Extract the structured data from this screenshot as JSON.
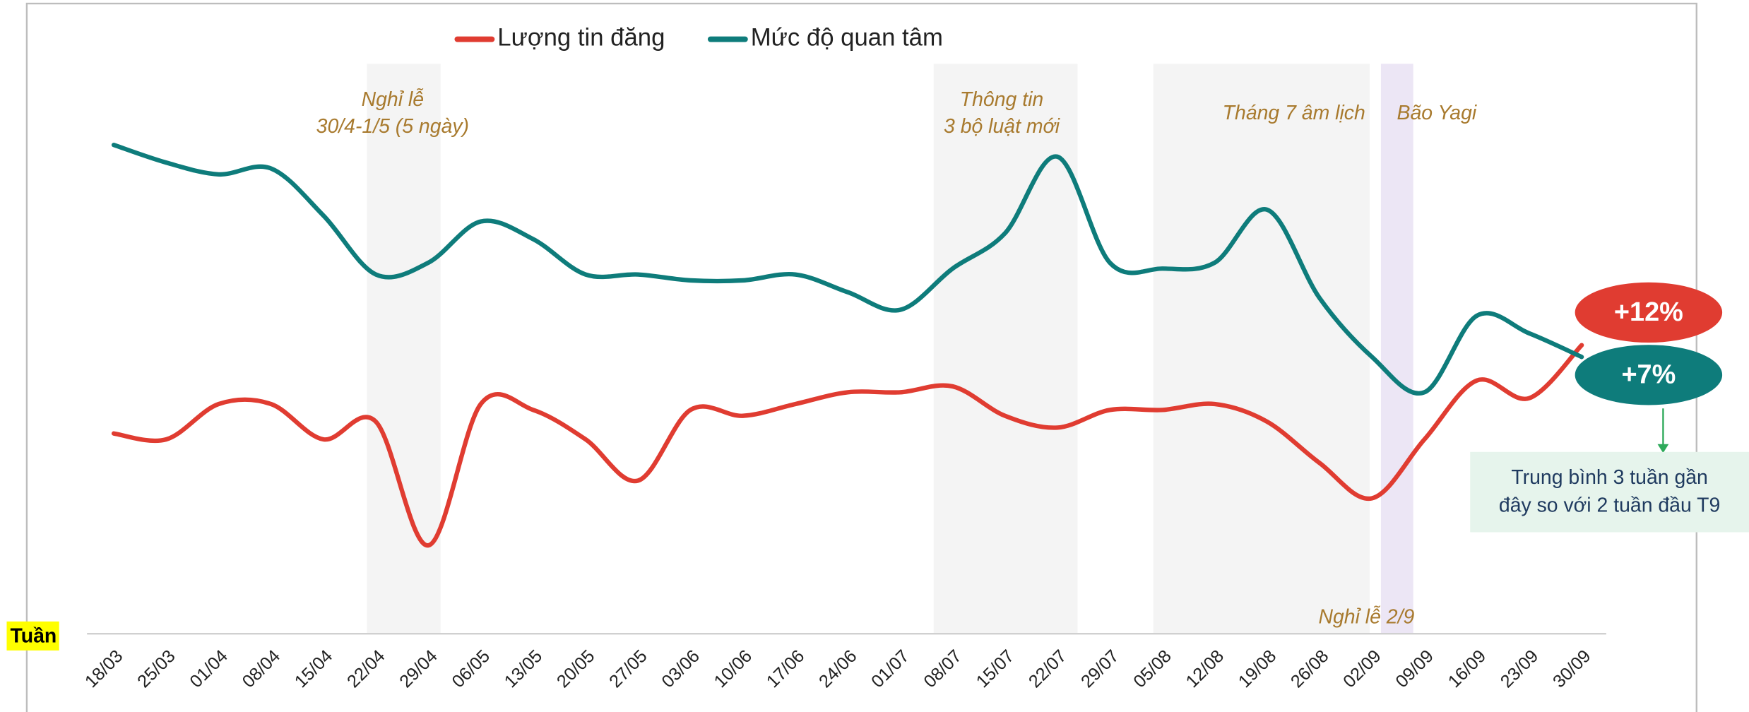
{
  "chart_data": {
    "type": "line",
    "x_label": "Tuần",
    "categories": [
      "18/03",
      "25/03",
      "01/04",
      "08/04",
      "15/04",
      "22/04",
      "29/04",
      "06/05",
      "13/05",
      "20/05",
      "27/05",
      "03/06",
      "10/06",
      "17/06",
      "24/06",
      "01/07",
      "08/07",
      "15/07",
      "22/07",
      "29/07",
      "05/08",
      "12/08",
      "19/08",
      "26/08",
      "02/09",
      "09/09",
      "16/09",
      "23/09",
      "30/09"
    ],
    "series": [
      {
        "name": "Lượng tin đăng",
        "color": "#e03c31",
        "values": [
          34,
          33,
          39,
          39,
          33,
          36,
          15,
          39,
          38,
          33,
          26,
          38,
          37,
          39,
          41,
          41,
          42,
          37,
          35,
          38,
          38,
          39,
          36,
          29,
          23,
          33,
          43,
          40,
          49
        ]
      },
      {
        "name": "Mức độ quan tâm",
        "color": "#0e7c7b",
        "values": [
          83,
          80,
          78,
          79,
          71,
          61,
          63,
          70,
          67,
          61,
          61,
          60,
          60,
          61,
          58,
          55,
          62,
          68,
          81,
          63,
          62,
          63,
          72,
          57,
          47,
          41,
          54,
          51,
          47
        ]
      }
    ],
    "ylim": [
      0,
      100
    ],
    "annotations": [
      "Nghỉ lễ",
      "30/4-1/5 (5 ngày)",
      "Thông tin",
      "3 bộ luật mới",
      "Tháng 7 âm lịch",
      "Bão Yagi",
      "Nghỉ lễ 2/9"
    ],
    "change_labels": [
      "+12%",
      "+7%"
    ],
    "note": [
      "Trung bình 3 tuần gần",
      "đây so với 2 tuần đầu T9"
    ]
  }
}
